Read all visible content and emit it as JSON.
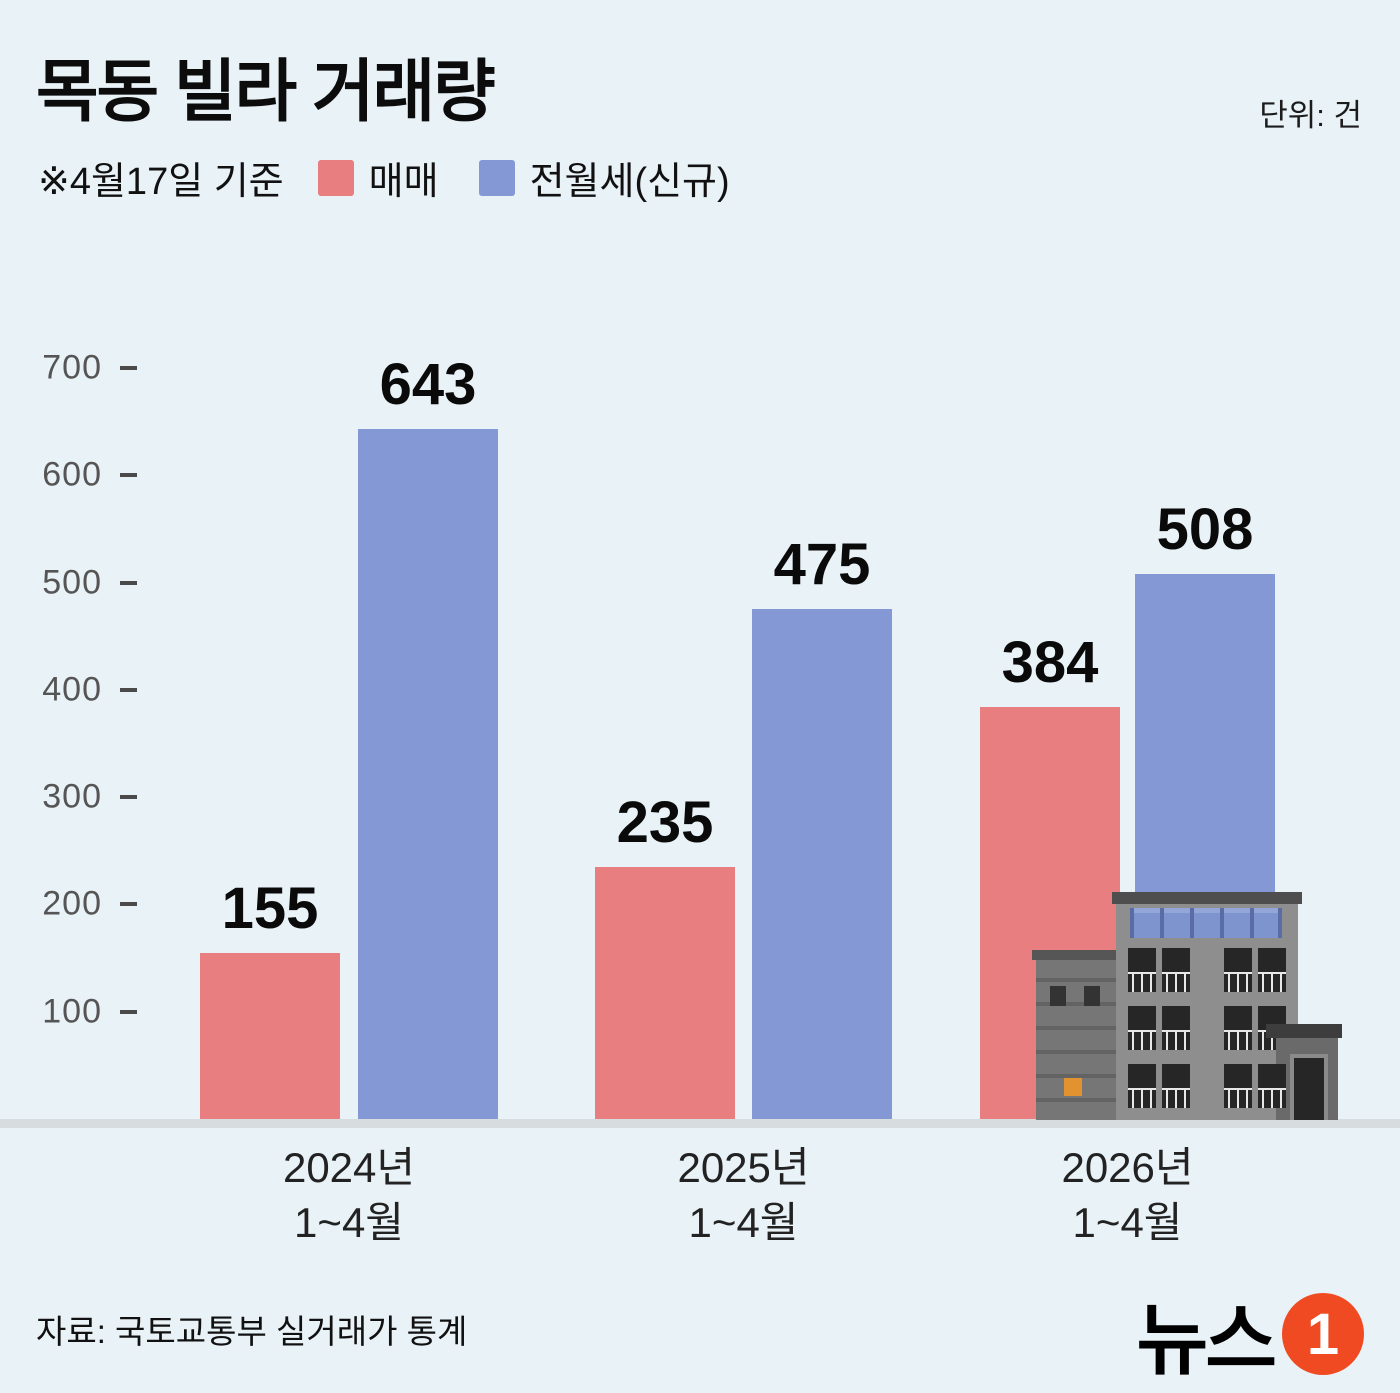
{
  "header": {
    "title": "목동 빌라 거래량",
    "unit_label": "단위: 건",
    "note": "※4월17일 기준"
  },
  "chart_data": {
    "type": "bar",
    "title": "목동 빌라 거래량",
    "categories": [
      "2024년\n1~4월",
      "2025년\n1~4월",
      "2026년\n1~4월"
    ],
    "series": [
      {
        "name": "매매",
        "color": "#e87e80",
        "values": [
          155,
          235,
          384
        ]
      },
      {
        "name": "전월세(신규)",
        "color": "#8398d5",
        "values": [
          643,
          475,
          508
        ]
      }
    ],
    "xlabel": "",
    "ylabel": "건",
    "ylim": [
      0,
      700
    ],
    "yticks": [
      100,
      200,
      300,
      400,
      500,
      600,
      700
    ],
    "grid": false,
    "legend_position": "top",
    "data_labels": true
  },
  "footer": {
    "source": "자료: 국토교통부 실거래가 통계",
    "logo_text": "뉴스",
    "logo_one": "1"
  },
  "colors": {
    "background": "#e9f2f7",
    "baseline_strip": "#d7dcdf",
    "sale_bar": "#e87e80",
    "rent_bar": "#8398d5",
    "logo_orange": "#f04a23"
  }
}
